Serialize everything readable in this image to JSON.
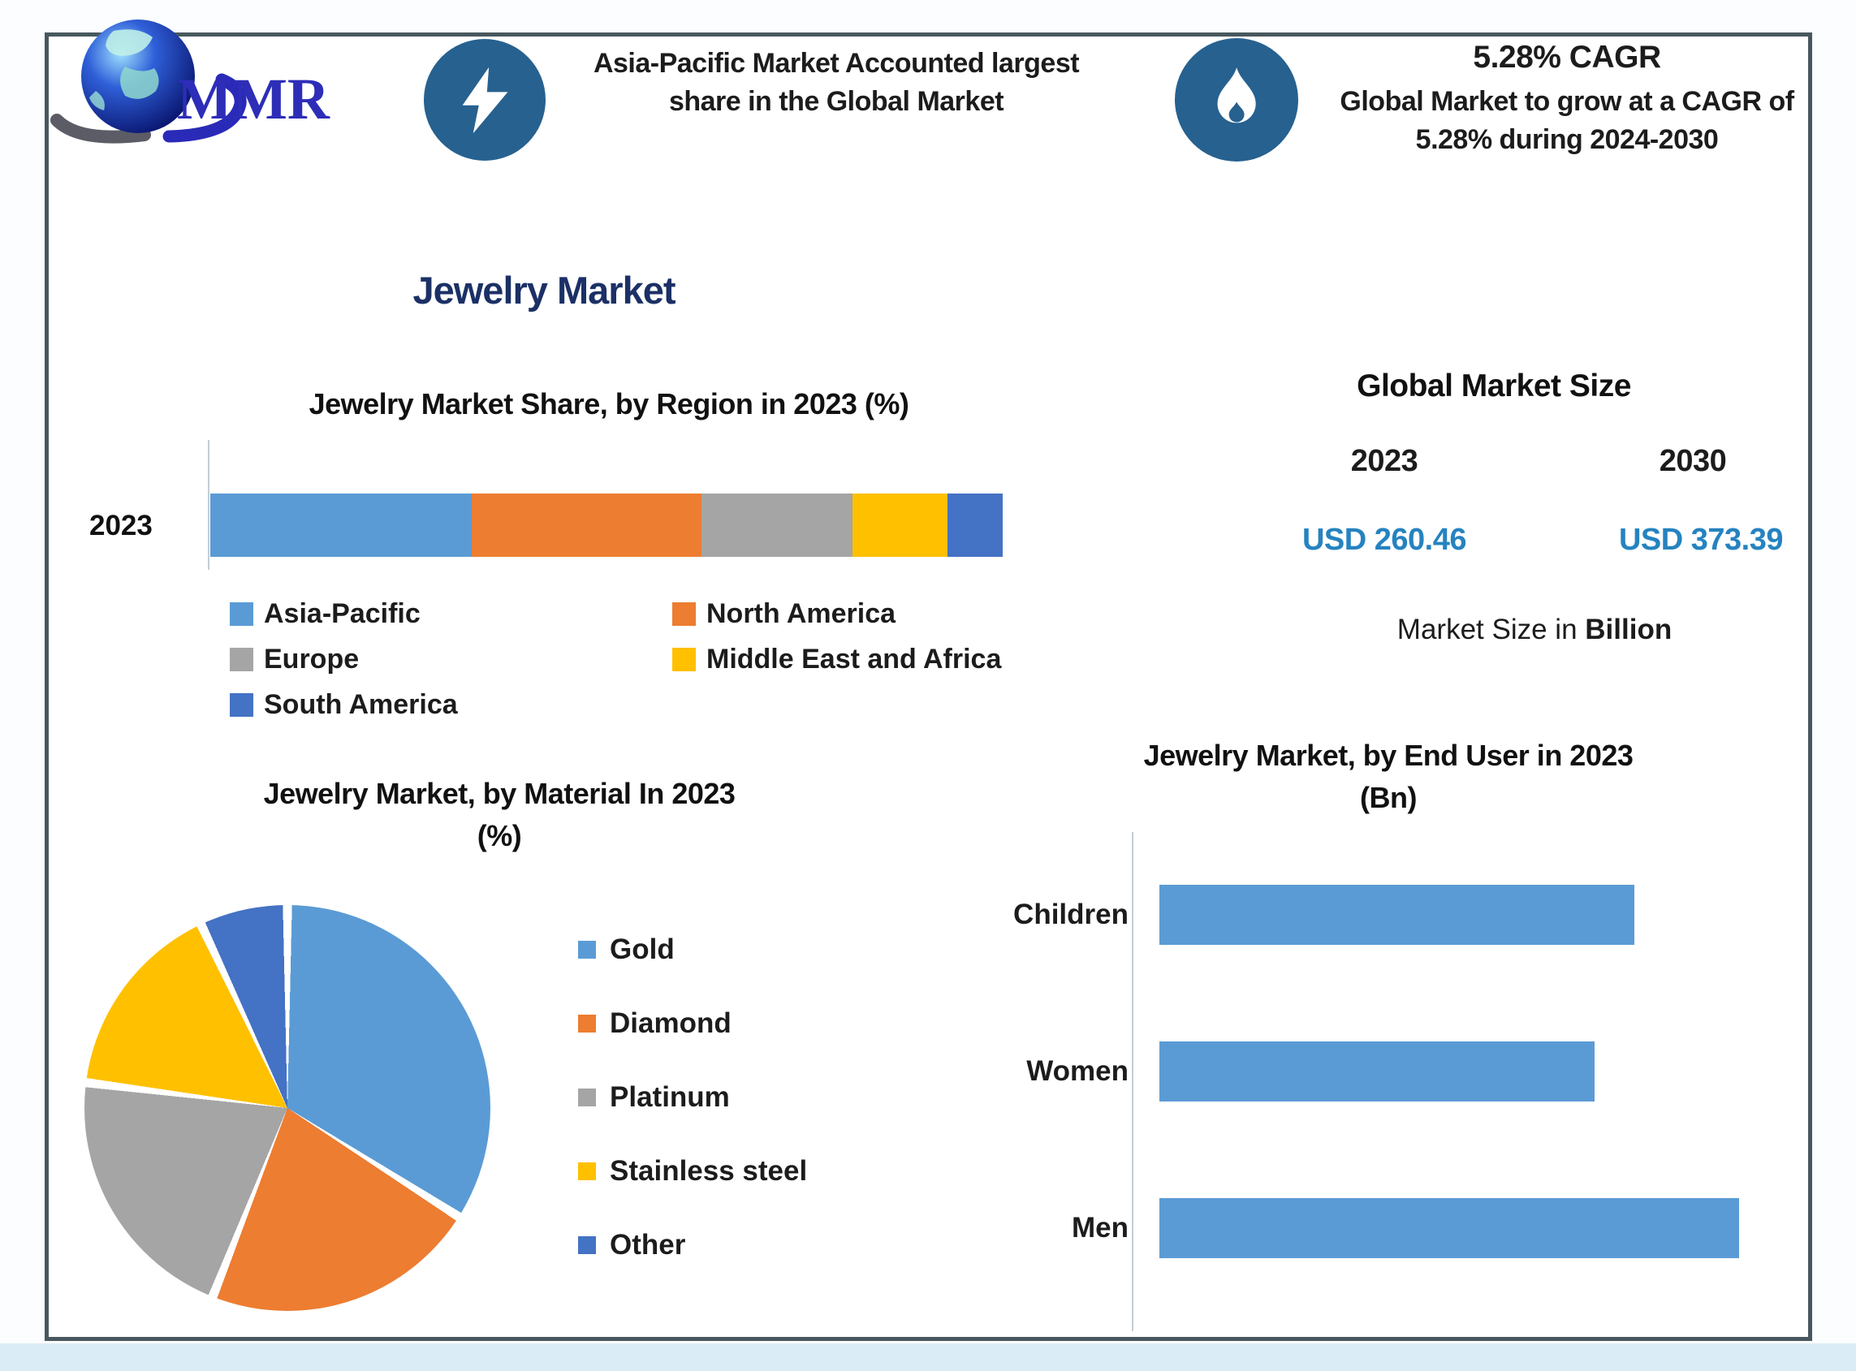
{
  "brand": {
    "logo_text": "MMR"
  },
  "header": {
    "highlight1": {
      "icon": "lightning-icon",
      "text": "Asia-Pacific Market Accounted largest share in the Global Market"
    },
    "highlight2": {
      "icon": "flame-icon",
      "title": "5.28% CAGR",
      "text": "Global Market to grow at a CAGR of 5.28% during 2024-2030"
    }
  },
  "page_title": "Jewelry Market",
  "market_size": {
    "title": "Global Market Size",
    "columns": [
      {
        "year": "2023",
        "value": "USD 260.46"
      },
      {
        "year": "2030",
        "value": "USD 373.39"
      }
    ],
    "note_prefix": "Market Size in ",
    "note_bold": "Billion"
  },
  "colors": {
    "title_navy": "#1b3066",
    "value_blue": "#2583c0",
    "icon_circle": "#27618F",
    "panel_border": "#48585e",
    "outer_strip": "#daecf6"
  },
  "chart_data": [
    {
      "type": "bar",
      "subtype": "stacked-horizontal",
      "title": "Jewelry Market Share, by Region in 2023 (%)",
      "categories": [
        "2023"
      ],
      "series": [
        {
          "name": "Asia-Pacific",
          "color": "#5B9BD5",
          "values": [
            33
          ]
        },
        {
          "name": "North America",
          "color": "#ED7D31",
          "values": [
            29
          ]
        },
        {
          "name": "Europe",
          "color": "#A5A5A5",
          "values": [
            19
          ]
        },
        {
          "name": "Middle East and Africa",
          "color": "#FFC000",
          "values": [
            12
          ]
        },
        {
          "name": "South America",
          "color": "#4472C4",
          "values": [
            7
          ]
        }
      ],
      "xlim": [
        0,
        100
      ],
      "grid": false,
      "legend_position": "bottom"
    },
    {
      "type": "pie",
      "title": "Jewelry Market, by Material In 2023 (%)",
      "display": {
        "line1": "Jewelry Market, by Material In 2023",
        "line2": "(%)"
      },
      "labels": [
        "Gold",
        "Diamond",
        "Platinum",
        "Stainless steel",
        "Other"
      ],
      "values": [
        34,
        22,
        21,
        16,
        7
      ],
      "colors": [
        "#5B9BD5",
        "#ED7D31",
        "#A5A5A5",
        "#FFC000",
        "#4472C4"
      ],
      "start_angle_deg": 0,
      "legend_position": "right"
    },
    {
      "type": "bar",
      "subtype": "horizontal",
      "title": "Jewelry Market, by End User in 2023 (Bn)",
      "display": {
        "line1": "Jewelry Market, by End User in 2023",
        "line2": "(Bn)"
      },
      "categories": [
        "Children",
        "Women",
        "Men"
      ],
      "values": [
        82,
        75,
        100
      ],
      "bar_color": "#5B9BD5",
      "xlim": [
        0,
        100
      ],
      "grid": false,
      "note": "axis values not labeled in source; values are relative to longest bar = 100"
    }
  ]
}
